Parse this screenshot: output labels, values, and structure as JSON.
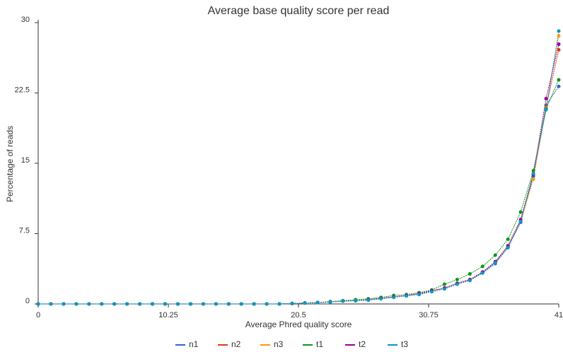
{
  "chart_data": {
    "type": "line",
    "title": "Average base quality score per read",
    "x_label": "Average Phred quality score",
    "y_label": "Percentage of reads",
    "x": [
      0,
      1,
      2,
      3,
      4,
      5,
      6,
      7,
      8,
      9,
      10,
      11,
      12,
      13,
      14,
      15,
      16,
      17,
      18,
      19,
      20,
      21,
      22,
      23,
      24,
      25,
      26,
      27,
      28,
      29,
      30,
      31,
      32,
      33,
      34,
      35,
      36,
      37,
      38,
      39,
      40,
      41
    ],
    "xlim": [
      0,
      41
    ],
    "xticks": [
      0,
      10.25,
      20.5,
      30.75,
      41
    ],
    "ylim": [
      0,
      30
    ],
    "yticks": [
      0,
      7.5,
      15,
      22.5,
      30
    ],
    "legend": "bottom",
    "series": [
      {
        "name": "n1",
        "color": "#3366cc",
        "values": [
          0,
          0,
          0,
          0,
          0,
          0,
          0,
          0,
          0,
          0,
          0,
          0,
          0,
          0,
          0,
          0,
          0,
          0,
          0,
          0,
          0.05,
          0.1,
          0.15,
          0.2,
          0.3,
          0.35,
          0.45,
          0.6,
          0.75,
          0.9,
          1.1,
          1.4,
          1.7,
          2.2,
          2.6,
          3.3,
          4.3,
          6.0,
          8.7,
          13.6,
          21.2,
          23.2
        ]
      },
      {
        "name": "n2",
        "color": "#dc3912",
        "values": [
          0,
          0,
          0,
          0,
          0,
          0,
          0,
          0,
          0,
          0,
          0,
          0,
          0,
          0,
          0,
          0,
          0,
          0,
          0,
          0,
          0.05,
          0.1,
          0.15,
          0.2,
          0.3,
          0.35,
          0.45,
          0.6,
          0.75,
          0.9,
          1.1,
          1.4,
          1.7,
          2.2,
          2.6,
          3.4,
          4.5,
          6.2,
          8.9,
          13.9,
          21.0,
          27.1
        ]
      },
      {
        "name": "n3",
        "color": "#ff9900",
        "values": [
          0,
          0,
          0,
          0,
          0,
          0,
          0,
          0,
          0,
          0,
          0,
          0,
          0,
          0,
          0,
          0,
          0,
          0,
          0,
          0,
          0.05,
          0.1,
          0.15,
          0.2,
          0.3,
          0.35,
          0.45,
          0.6,
          0.75,
          0.9,
          1.1,
          1.4,
          1.7,
          2.2,
          2.6,
          3.4,
          4.4,
          6.1,
          8.8,
          13.3,
          20.9,
          28.6
        ]
      },
      {
        "name": "t1",
        "color": "#109618",
        "values": [
          0,
          0,
          0,
          0,
          0,
          0,
          0,
          0,
          0,
          0,
          0,
          0,
          0,
          0,
          0,
          0,
          0,
          0,
          0,
          0,
          0.05,
          0.1,
          0.15,
          0.25,
          0.35,
          0.45,
          0.55,
          0.7,
          0.9,
          1.0,
          1.2,
          1.5,
          2.1,
          2.6,
          3.2,
          4.0,
          5.2,
          6.9,
          9.8,
          14.2,
          20.8,
          23.9
        ]
      },
      {
        "name": "t2",
        "color": "#990099",
        "values": [
          0,
          0,
          0,
          0,
          0,
          0,
          0,
          0,
          0,
          0,
          0,
          0,
          0,
          0,
          0,
          0,
          0,
          0,
          0,
          0,
          0.05,
          0.1,
          0.15,
          0.2,
          0.3,
          0.35,
          0.45,
          0.6,
          0.75,
          0.9,
          1.1,
          1.4,
          1.7,
          2.2,
          2.6,
          3.4,
          4.5,
          6.2,
          9.0,
          13.8,
          21.9,
          27.7
        ]
      },
      {
        "name": "t3",
        "color": "#0099c6",
        "values": [
          0,
          0,
          0,
          0,
          0,
          0,
          0,
          0,
          0,
          0,
          0,
          0,
          0,
          0,
          0,
          0,
          0,
          0,
          0,
          0,
          0.05,
          0.1,
          0.15,
          0.2,
          0.3,
          0.35,
          0.4,
          0.55,
          0.7,
          0.85,
          1.0,
          1.3,
          1.6,
          2.1,
          2.5,
          3.3,
          4.4,
          6.0,
          8.8,
          13.9,
          20.7,
          29.1
        ]
      }
    ]
  }
}
